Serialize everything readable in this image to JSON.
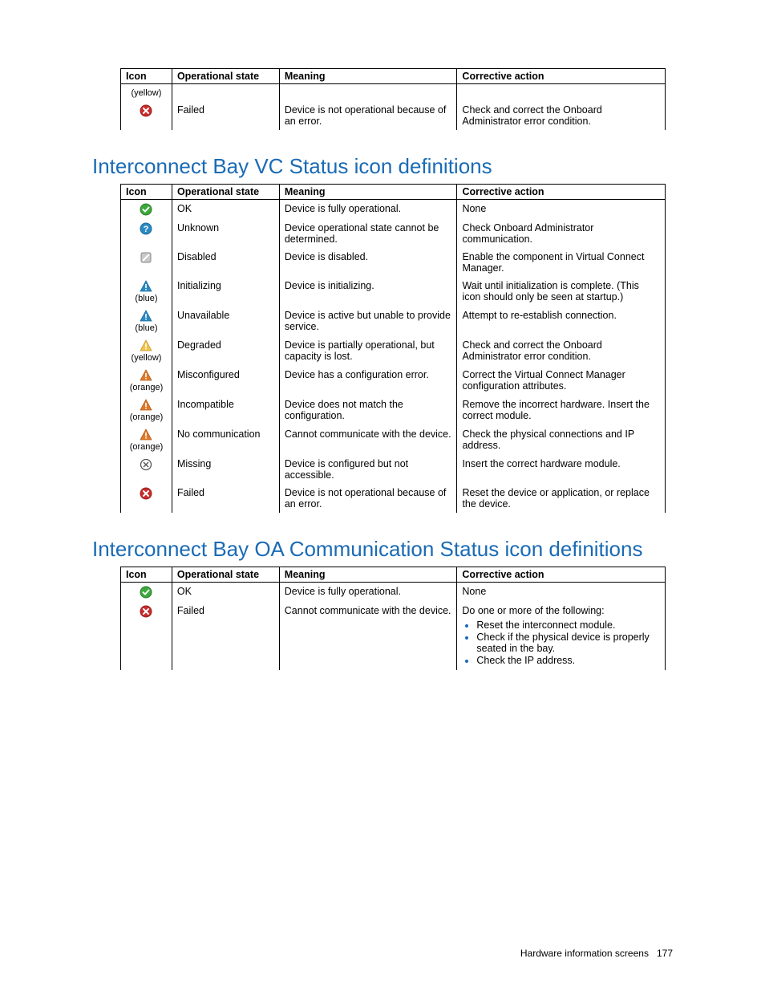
{
  "headers": {
    "icon": "Icon",
    "state": "Operational state",
    "meaning": "Meaning",
    "action": "Corrective action"
  },
  "table1": {
    "rows": [
      {
        "icon_color_note": "(yellow)",
        "icon": "none",
        "state": "",
        "meaning": "",
        "action": ""
      },
      {
        "icon": "failed",
        "state": "Failed",
        "meaning": "Device is not operational because of an error.",
        "action": "Check and correct the Onboard Administrator error condition."
      }
    ]
  },
  "section2": {
    "title": "Interconnect Bay VC Status icon definitions",
    "rows": [
      {
        "icon": "ok",
        "state": "OK",
        "meaning": "Device is fully operational.",
        "action": "None"
      },
      {
        "icon": "unknown",
        "state": "Unknown",
        "meaning": "Device operational state cannot be determined.",
        "action": "Check Onboard Administrator communication."
      },
      {
        "icon": "disabled",
        "state": "Disabled",
        "meaning": "Device is disabled.",
        "action": "Enable the component in Virtual Connect Manager."
      },
      {
        "icon": "warn-blue",
        "sub": "(blue)",
        "state": "Initializing",
        "meaning": "Device is initializing.",
        "action": "Wait until initialization is complete. (This icon should only be seen at startup.)"
      },
      {
        "icon": "warn-blue",
        "sub": "(blue)",
        "state": "Unavailable",
        "meaning": "Device is active but unable to provide service.",
        "action": "Attempt to re-establish connection."
      },
      {
        "icon": "warn-yellow",
        "sub": "(yellow)",
        "state": "Degraded",
        "meaning": "Device is partially operational, but capacity is lost.",
        "action": "Check and correct the Onboard Administrator error condition."
      },
      {
        "icon": "warn-orange",
        "sub": "(orange)",
        "state": "Misconfigured",
        "meaning": "Device has a configuration error.",
        "action": "Correct the Virtual Connect Manager configuration attributes."
      },
      {
        "icon": "warn-orange",
        "sub": "(orange)",
        "state": "Incompatible",
        "meaning": "Device does not match the configuration.",
        "action": "Remove the incorrect hardware. Insert the correct module."
      },
      {
        "icon": "warn-orange",
        "sub": "(orange)",
        "state": "No communication",
        "meaning": "Cannot communicate with the device.",
        "action": "Check the physical connections and IP address."
      },
      {
        "icon": "missing",
        "state": "Missing",
        "meaning": "Device is configured but not accessible.",
        "action": "Insert the correct hardware module."
      },
      {
        "icon": "failed",
        "state": "Failed",
        "meaning": "Device is not operational because of an error.",
        "action": "Reset the device or application, or replace the device."
      }
    ]
  },
  "section3": {
    "title": "Interconnect Bay OA Communication Status icon definitions",
    "rows": [
      {
        "icon": "ok",
        "state": "OK",
        "meaning": "Device is fully operational.",
        "action": "None"
      },
      {
        "icon": "failed",
        "state": "Failed",
        "meaning": "Cannot communicate with the device.",
        "action": "Do one or more of the following:",
        "action_list": [
          "Reset the interconnect module.",
          "Check if the physical device is properly seated in the bay.",
          "Check the IP address."
        ]
      }
    ]
  },
  "footer": {
    "text": "Hardware information screens",
    "page": "177"
  },
  "colors": {
    "heading": "#1a6bb5",
    "ok": "#3ba93b",
    "unknown": "#2a8ac4",
    "disabled": "#9a9a9a",
    "warn_blue": "#2a8ac4",
    "warn_yellow": "#f2c24b",
    "warn_orange": "#e07a2a",
    "failed": "#cc2a2a",
    "missing_stroke": "#555555"
  }
}
